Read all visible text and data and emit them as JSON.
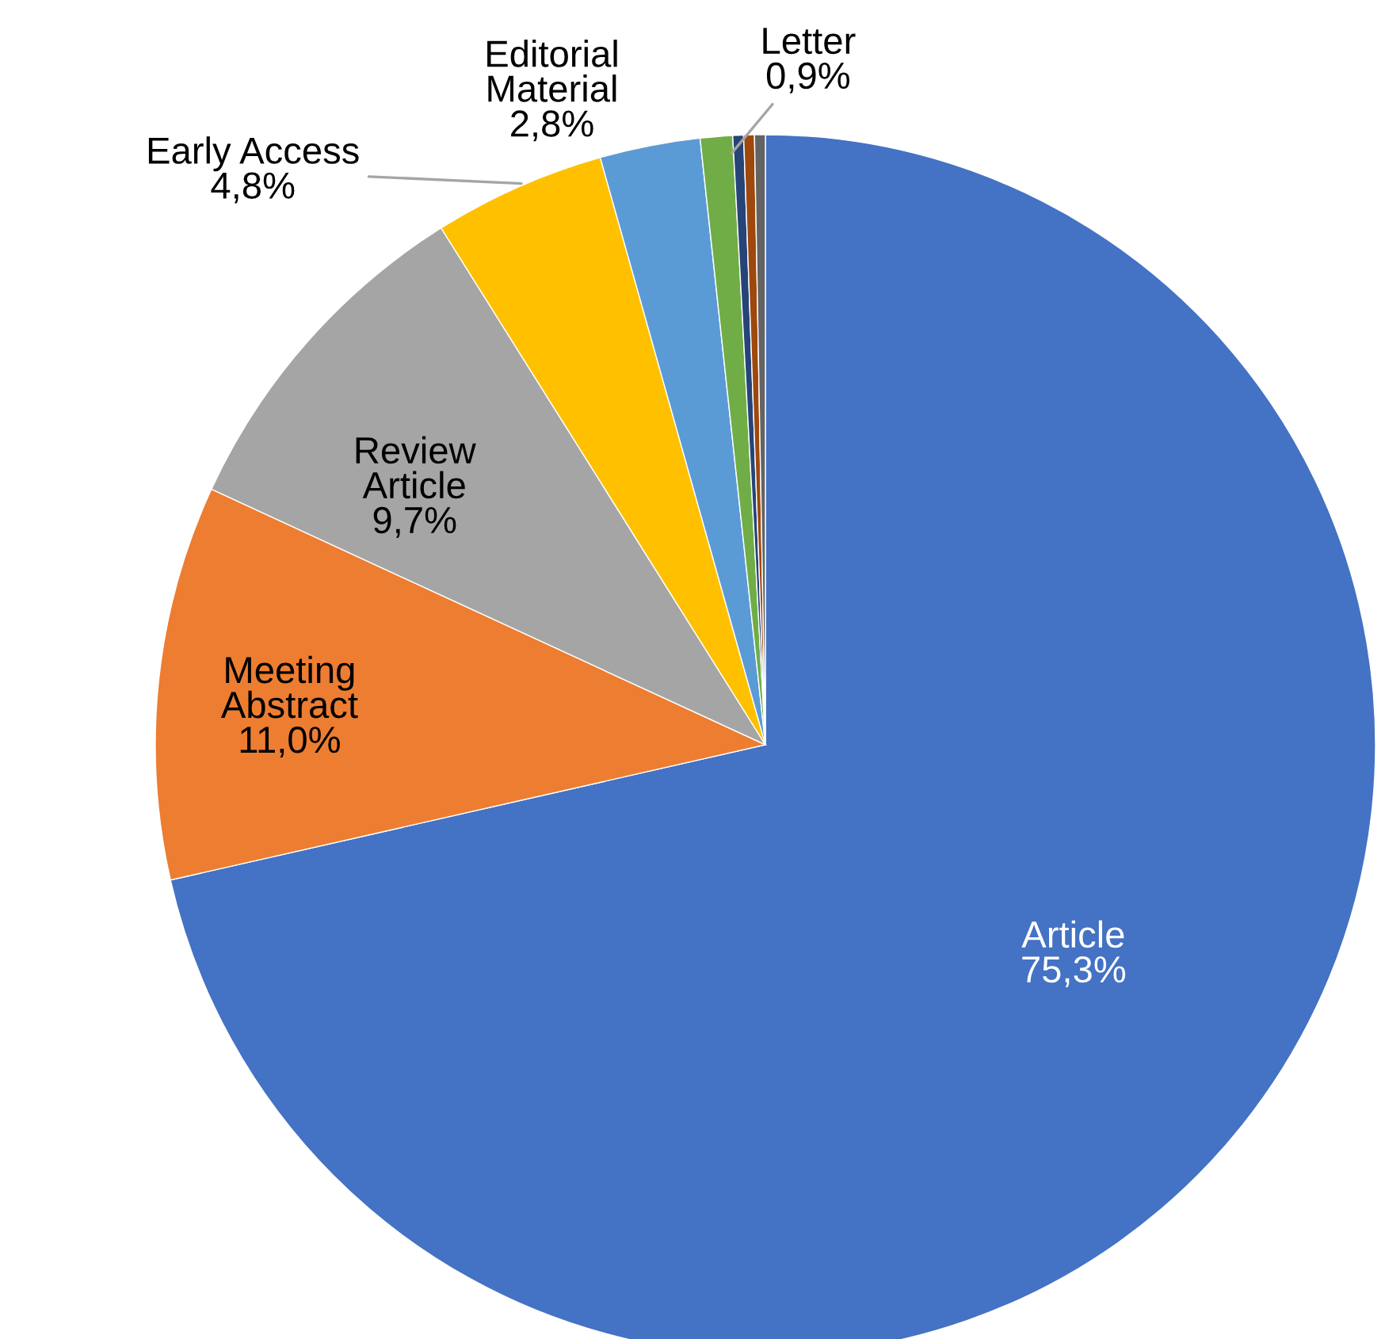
{
  "chart_data": {
    "type": "pie",
    "categories": [
      "Article",
      "Meeting Abstract",
      "Review Article",
      "Early Access",
      "Editorial Material",
      "Letter",
      null,
      null,
      null
    ],
    "values": [
      75.3,
      11.0,
      9.7,
      4.8,
      2.8,
      0.9,
      0.3,
      0.3,
      0.3
    ],
    "value_labels": [
      "75,3%",
      "11,0%",
      "9,7%",
      "4,8%",
      "2,8%",
      "0,9%",
      null,
      null,
      null
    ],
    "colors": [
      "#4472c4",
      "#ed7d31",
      "#a5a5a5",
      "#ffc000",
      "#5b9bd5",
      "#70ad47",
      "#264478",
      "#9e480e",
      "#636363"
    ],
    "legend": false
  }
}
